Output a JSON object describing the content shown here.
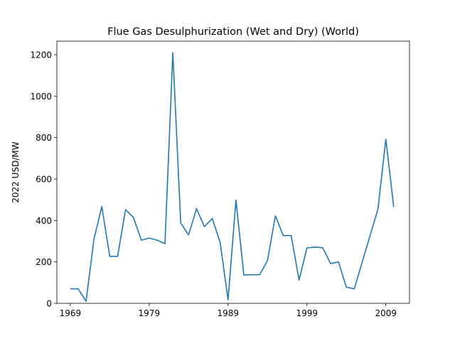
{
  "chart_data": {
    "type": "line",
    "title": "Flue Gas Desulphurization (Wet and Dry) (World)",
    "xlabel": "",
    "ylabel": "2022 USD/MW",
    "xlim": [
      1967.3,
      2012.0
    ],
    "ylim": [
      0,
      1265
    ],
    "x_ticks": [
      1969,
      1979,
      1989,
      1999,
      2009
    ],
    "y_ticks": [
      0,
      200,
      400,
      600,
      800,
      1000,
      1200
    ],
    "grid": false,
    "color": "#1f77b4",
    "series": [
      {
        "x": [
          1969,
          1970,
          1971,
          1972,
          1973,
          1974,
          1975,
          1976,
          1977,
          1978,
          1979,
          1980,
          1981,
          1982,
          1983,
          1984,
          1985,
          1986,
          1987,
          1988,
          1989,
          1990,
          1991,
          1992,
          1993,
          1994,
          1995,
          1996,
          1997,
          1998,
          1999,
          2000,
          2001,
          2002,
          2003,
          2004,
          2005,
          2008,
          2009,
          2010
        ],
        "y": [
          70,
          70,
          10,
          310,
          467,
          227,
          227,
          452,
          415,
          305,
          315,
          305,
          288,
          1210,
          387,
          330,
          457,
          370,
          410,
          293,
          17,
          498,
          137,
          138,
          138,
          207,
          422,
          327,
          327,
          112,
          267,
          272,
          268,
          192,
          200,
          78,
          70,
          455,
          792,
          465
        ]
      }
    ]
  }
}
